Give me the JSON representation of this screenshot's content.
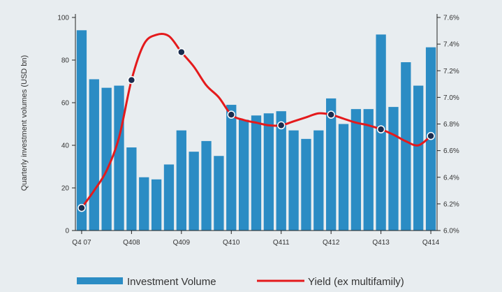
{
  "chart_data": {
    "type": "bar+line",
    "categories": [
      "Q407",
      "Q108",
      "Q208",
      "Q308",
      "Q408",
      "Q109",
      "Q209",
      "Q309",
      "Q409",
      "Q110",
      "Q210",
      "Q310",
      "Q410",
      "Q111",
      "Q211",
      "Q311",
      "Q411",
      "Q112",
      "Q212",
      "Q312",
      "Q412",
      "Q113",
      "Q213",
      "Q313",
      "Q413",
      "Q114",
      "Q214",
      "Q314",
      "Q414"
    ],
    "x_tick_labels": [
      "Q4 07",
      "Q408",
      "Q409",
      "Q410",
      "Q411",
      "Q412",
      "Q413",
      "Q414"
    ],
    "series": [
      {
        "name": "Investment Volume",
        "type": "bar",
        "axis": "left",
        "color": "#2b8cc4",
        "values": [
          94,
          71,
          67,
          68,
          39,
          25,
          24,
          31,
          47,
          37,
          42,
          35,
          59,
          52,
          54,
          55,
          56,
          47,
          43,
          47,
          62,
          50,
          57,
          57,
          92,
          58,
          79,
          68,
          86
        ]
      },
      {
        "name": "Yield (ex multifamily)",
        "type": "line",
        "axis": "right",
        "color": "#e41a1c",
        "values": [
          6.17,
          6.3,
          6.45,
          6.7,
          7.13,
          7.4,
          7.47,
          7.46,
          7.34,
          7.23,
          7.09,
          7.0,
          6.87,
          6.83,
          6.81,
          6.79,
          6.79,
          6.82,
          6.85,
          6.88,
          6.87,
          6.84,
          6.81,
          6.79,
          6.76,
          6.72,
          6.67,
          6.64,
          6.71
        ],
        "marker_indices": [
          0,
          4,
          8,
          12,
          16,
          20,
          24,
          28
        ]
      }
    ],
    "y_left": {
      "label": "Quarterly investment volumes (USD bn)",
      "range": [
        0,
        100
      ],
      "ticks": [
        "0",
        "20",
        "40",
        "60",
        "80",
        "100"
      ]
    },
    "y_right": {
      "range": [
        6.0,
        7.6
      ],
      "ticks": [
        "6.0%",
        "6.2%",
        "6.4%",
        "6.6%",
        "6.8%",
        "7.0%",
        "7.2%",
        "7.4%",
        "7.6%"
      ]
    },
    "grid": false,
    "legend": {
      "position": "bottom",
      "items": [
        "Investment Volume",
        "Yield (ex multifamily)"
      ]
    }
  }
}
